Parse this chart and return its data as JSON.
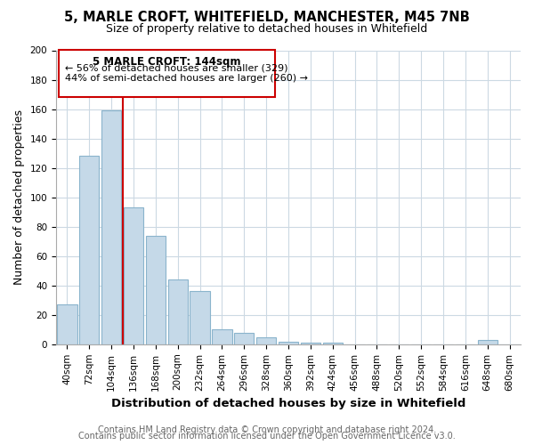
{
  "title": "5, MARLE CROFT, WHITEFIELD, MANCHESTER, M45 7NB",
  "subtitle": "Size of property relative to detached houses in Whitefield",
  "bar_labels": [
    "40sqm",
    "72sqm",
    "104sqm",
    "136sqm",
    "168sqm",
    "200sqm",
    "232sqm",
    "264sqm",
    "296sqm",
    "328sqm",
    "360sqm",
    "392sqm",
    "424sqm",
    "456sqm",
    "488sqm",
    "520sqm",
    "552sqm",
    "584sqm",
    "616sqm",
    "648sqm",
    "680sqm"
  ],
  "bar_values": [
    27,
    128,
    159,
    93,
    74,
    44,
    36,
    10,
    8,
    5,
    2,
    1,
    1,
    0,
    0,
    0,
    0,
    0,
    0,
    3,
    0
  ],
  "bar_color": "#c5d9e8",
  "bar_edge_color": "#8ab4cc",
  "vline_color": "#cc0000",
  "vline_x_index": 3,
  "ylim": [
    0,
    200
  ],
  "yticks": [
    0,
    20,
    40,
    60,
    80,
    100,
    120,
    140,
    160,
    180,
    200
  ],
  "ylabel": "Number of detached properties",
  "xlabel": "Distribution of detached houses by size in Whitefield",
  "annotation_title": "5 MARLE CROFT: 144sqm",
  "annotation_line1": "← 56% of detached houses are smaller (329)",
  "annotation_line2": "44% of semi-detached houses are larger (260) →",
  "footer1": "Contains HM Land Registry data © Crown copyright and database right 2024.",
  "footer2": "Contains public sector information licensed under the Open Government Licence v3.0.",
  "title_fontsize": 10.5,
  "subtitle_fontsize": 9,
  "tick_fontsize": 7.5,
  "ylabel_fontsize": 9,
  "xlabel_fontsize": 9.5,
  "footer_fontsize": 7,
  "annotation_title_fontsize": 8.5,
  "annotation_text_fontsize": 8
}
